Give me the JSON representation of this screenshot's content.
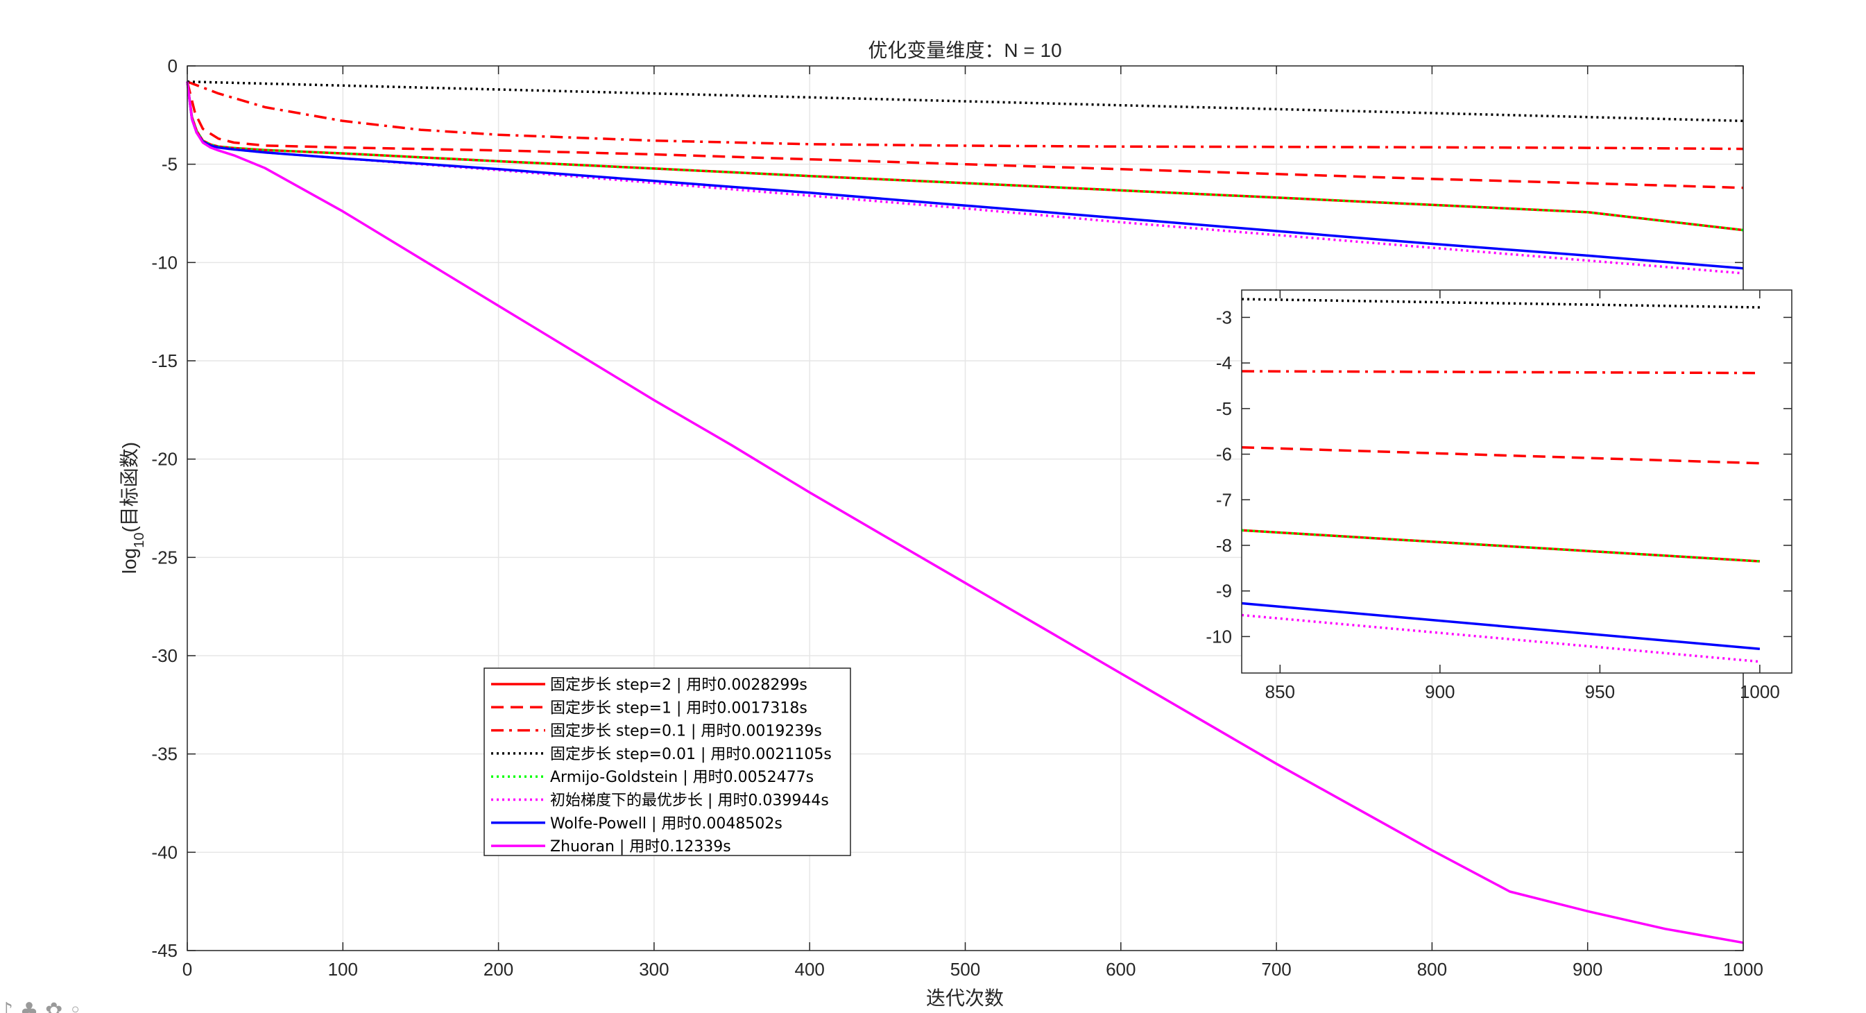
{
  "chart_data": [
    {
      "type": "line",
      "title": "优化变量维度：N = 10",
      "xlabel": "迭代次数",
      "ylabel": "log10(目标函数)",
      "xlim": [
        0,
        1000
      ],
      "ylim": [
        -45,
        0
      ],
      "xticks": [
        0,
        100,
        200,
        300,
        400,
        500,
        600,
        700,
        800,
        900,
        1000
      ],
      "yticks": [
        0,
        -5,
        -10,
        -15,
        -20,
        -25,
        -30,
        -35,
        -40,
        -45
      ],
      "grid": true,
      "legend_position": "lower-left",
      "series": [
        {
          "name": "固定步长 step=2 | 用时0.0028299s",
          "color": "#ff0000",
          "dash": "solid",
          "x": [
            0,
            3,
            6,
            10,
            15,
            20,
            30,
            50,
            100,
            200,
            300,
            400,
            500,
            600,
            700,
            800,
            900,
            1000
          ],
          "y": [
            -0.8,
            -2.6,
            -3.3,
            -3.8,
            -4.0,
            -4.1,
            -4.18,
            -4.28,
            -4.45,
            -4.85,
            -5.22,
            -5.6,
            -5.96,
            -6.33,
            -6.7,
            -7.07,
            -7.44,
            -8.35
          ]
        },
        {
          "name": "固定步长 step=1 | 用时0.0017318s",
          "color": "#ff0000",
          "dash": "dashed",
          "x": [
            0,
            5,
            10,
            20,
            30,
            50,
            100,
            200,
            300,
            400,
            500,
            600,
            700,
            800,
            900,
            1000
          ],
          "y": [
            -0.8,
            -2.4,
            -3.2,
            -3.7,
            -3.9,
            -4.05,
            -4.15,
            -4.3,
            -4.5,
            -4.75,
            -5.0,
            -5.25,
            -5.5,
            -5.75,
            -5.97,
            -6.2
          ]
        },
        {
          "name": "固定步长 step=0.1 | 用时0.0019239s",
          "color": "#ff0000",
          "dash": "dashdot",
          "x": [
            0,
            20,
            50,
            100,
            150,
            200,
            300,
            400,
            500,
            600,
            700,
            800,
            900,
            1000
          ],
          "y": [
            -0.8,
            -1.4,
            -2.1,
            -2.8,
            -3.25,
            -3.5,
            -3.8,
            -3.98,
            -4.06,
            -4.1,
            -4.12,
            -4.14,
            -4.17,
            -4.22
          ]
        },
        {
          "name": "固定步长 step=0.01 | 用时0.0021105s",
          "color": "#000000",
          "dash": "dotted",
          "x": [
            0,
            100,
            200,
            300,
            400,
            500,
            600,
            700,
            800,
            900,
            1000
          ],
          "y": [
            -0.8,
            -1.0,
            -1.2,
            -1.4,
            -1.6,
            -1.8,
            -2.0,
            -2.2,
            -2.4,
            -2.6,
            -2.8
          ]
        },
        {
          "name": "Armijo-Goldstein | 用时0.0052477s",
          "color": "#00ff00",
          "dash": "dotted",
          "x": [
            0,
            3,
            6,
            10,
            15,
            20,
            30,
            50,
            100,
            200,
            300,
            400,
            500,
            600,
            700,
            800,
            900,
            1000
          ],
          "y": [
            -0.8,
            -2.6,
            -3.3,
            -3.8,
            -4.0,
            -4.1,
            -4.18,
            -4.28,
            -4.45,
            -4.85,
            -5.22,
            -5.6,
            -5.96,
            -6.33,
            -6.7,
            -7.07,
            -7.44,
            -8.35
          ]
        },
        {
          "name": "初始梯度下的最优步长 | 用时0.039944s",
          "color": "#ff00ff",
          "dash": "dotted",
          "x": [
            0,
            3,
            6,
            10,
            15,
            20,
            30,
            50,
            100,
            200,
            300,
            400,
            500,
            600,
            700,
            800,
            900,
            1000
          ],
          "y": [
            -0.8,
            -2.7,
            -3.4,
            -3.85,
            -4.05,
            -4.15,
            -4.25,
            -4.4,
            -4.7,
            -5.3,
            -5.95,
            -6.6,
            -7.25,
            -7.95,
            -8.6,
            -9.25,
            -9.9,
            -10.55
          ]
        },
        {
          "name": "Wolfe-Powell | 用时0.0048502s",
          "color": "#0000ff",
          "dash": "solid",
          "x": [
            0,
            3,
            6,
            10,
            15,
            20,
            30,
            50,
            100,
            200,
            300,
            400,
            500,
            600,
            700,
            800,
            900,
            1000
          ],
          "y": [
            -0.8,
            -2.7,
            -3.4,
            -3.85,
            -4.05,
            -4.15,
            -4.25,
            -4.4,
            -4.7,
            -5.25,
            -5.85,
            -6.45,
            -7.1,
            -7.75,
            -8.4,
            -9.05,
            -9.65,
            -10.3
          ]
        },
        {
          "name": "Zhuoran | 用时0.12339s",
          "color": "#ff00ff",
          "dash": "solid",
          "x": [
            0,
            3,
            6,
            10,
            15,
            20,
            30,
            50,
            100,
            150,
            200,
            250,
            300,
            350,
            400,
            450,
            500,
            550,
            600,
            650,
            700,
            750,
            800,
            850,
            900,
            950,
            1000
          ],
          "y": [
            -0.8,
            -2.7,
            -3.4,
            -3.9,
            -4.15,
            -4.3,
            -4.55,
            -5.2,
            -7.4,
            -9.8,
            -12.2,
            -14.6,
            -17.0,
            -19.3,
            -21.7,
            -24.0,
            -26.3,
            -28.6,
            -30.9,
            -33.2,
            -35.5,
            -37.7,
            -39.9,
            -42.0,
            -43.0,
            -43.9,
            -44.6
          ]
        }
      ]
    },
    {
      "type": "line",
      "title": "",
      "xlabel": "",
      "ylabel": "",
      "xlim": [
        838,
        1010
      ],
      "ylim": [
        -10.8,
        -2.4
      ],
      "xticks": [
        850,
        900,
        950,
        1000
      ],
      "yticks": [
        -3,
        -4,
        -5,
        -6,
        -7,
        -8,
        -9,
        -10
      ],
      "grid": false,
      "series": [
        {
          "color": "#000000",
          "dash": "dotted",
          "x": [
            838,
            1000
          ],
          "y": [
            -2.6,
            -2.78
          ]
        },
        {
          "color": "#ff0000",
          "dash": "dashdot",
          "x": [
            838,
            1000
          ],
          "y": [
            -4.18,
            -4.22
          ]
        },
        {
          "color": "#ff0000",
          "dash": "dashed",
          "x": [
            838,
            1000
          ],
          "y": [
            -5.85,
            -6.2
          ]
        },
        {
          "color": "#ff0000",
          "dash": "solid",
          "x": [
            838,
            1000
          ],
          "y": [
            -7.67,
            -8.35
          ]
        },
        {
          "color": "#00ff00",
          "dash": "dotted",
          "x": [
            838,
            1000
          ],
          "y": [
            -7.67,
            -8.35
          ]
        },
        {
          "color": "#0000ff",
          "dash": "solid",
          "x": [
            838,
            1000
          ],
          "y": [
            -9.27,
            -10.27
          ]
        },
        {
          "color": "#ff00ff",
          "dash": "dotted",
          "x": [
            838,
            1000
          ],
          "y": [
            -9.53,
            -10.55
          ]
        }
      ]
    }
  ]
}
